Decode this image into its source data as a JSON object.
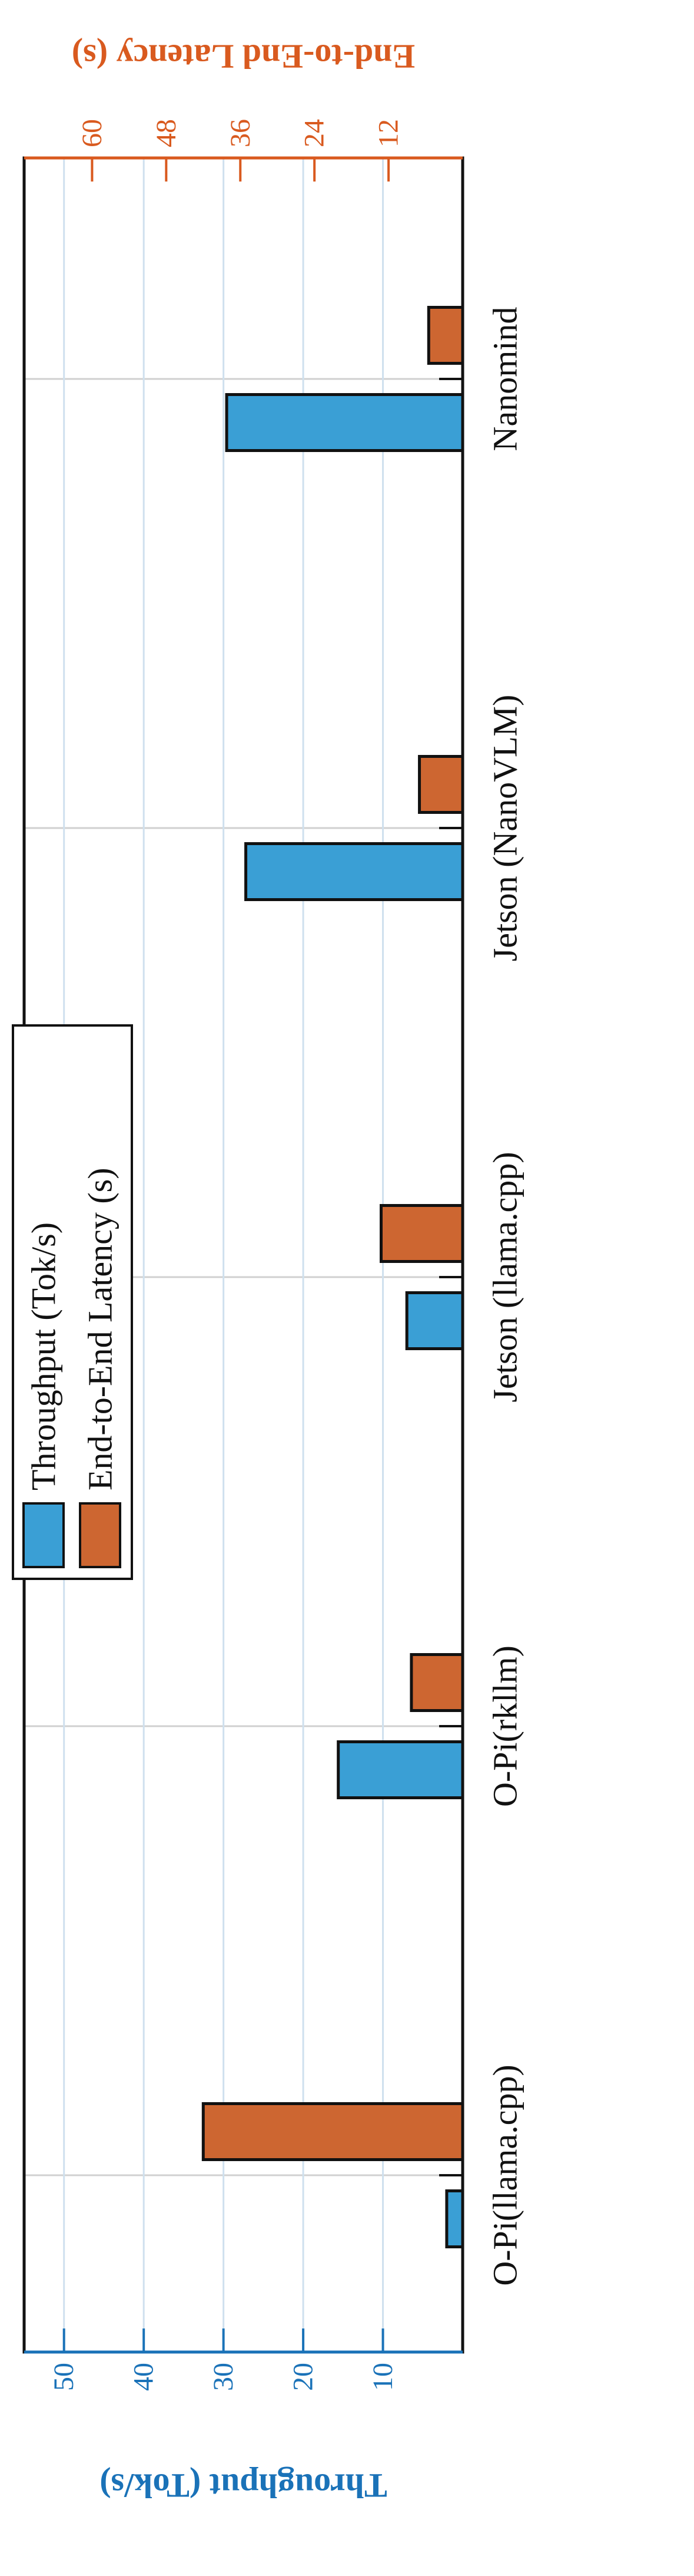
{
  "chart_data": {
    "type": "bar",
    "categories": [
      "O-Pi(llama.cpp)",
      "O-Pi(rkllm)",
      "Jetson (llama.cpp)",
      "Jetson (NanoVLM)",
      "Nanomind"
    ],
    "series": [
      {
        "name": "Throughput (Tok/s)",
        "color": "#3a9fd5",
        "values": [
          2,
          15.6,
          7,
          27.2,
          29.6
        ]
      },
      {
        "name": "End-to-End Latency (s)",
        "color": "#cd6631",
        "axis": "y2",
        "values": [
          42,
          8.3,
          13.2,
          7,
          5.5
        ]
      }
    ],
    "ylabel": "Throughput (Tok/s)",
    "y2label": "End-to-End Latency (s)",
    "ylim": [
      0,
      55
    ],
    "yticks": [
      10,
      20,
      30,
      40,
      50
    ],
    "y2lim": [
      0,
      71
    ],
    "y2ticks": [
      12,
      24,
      36,
      48,
      60
    ],
    "ycolor": "#1a72b8",
    "y2color": "#d95a1f",
    "grid": true,
    "legend": "upper center"
  }
}
